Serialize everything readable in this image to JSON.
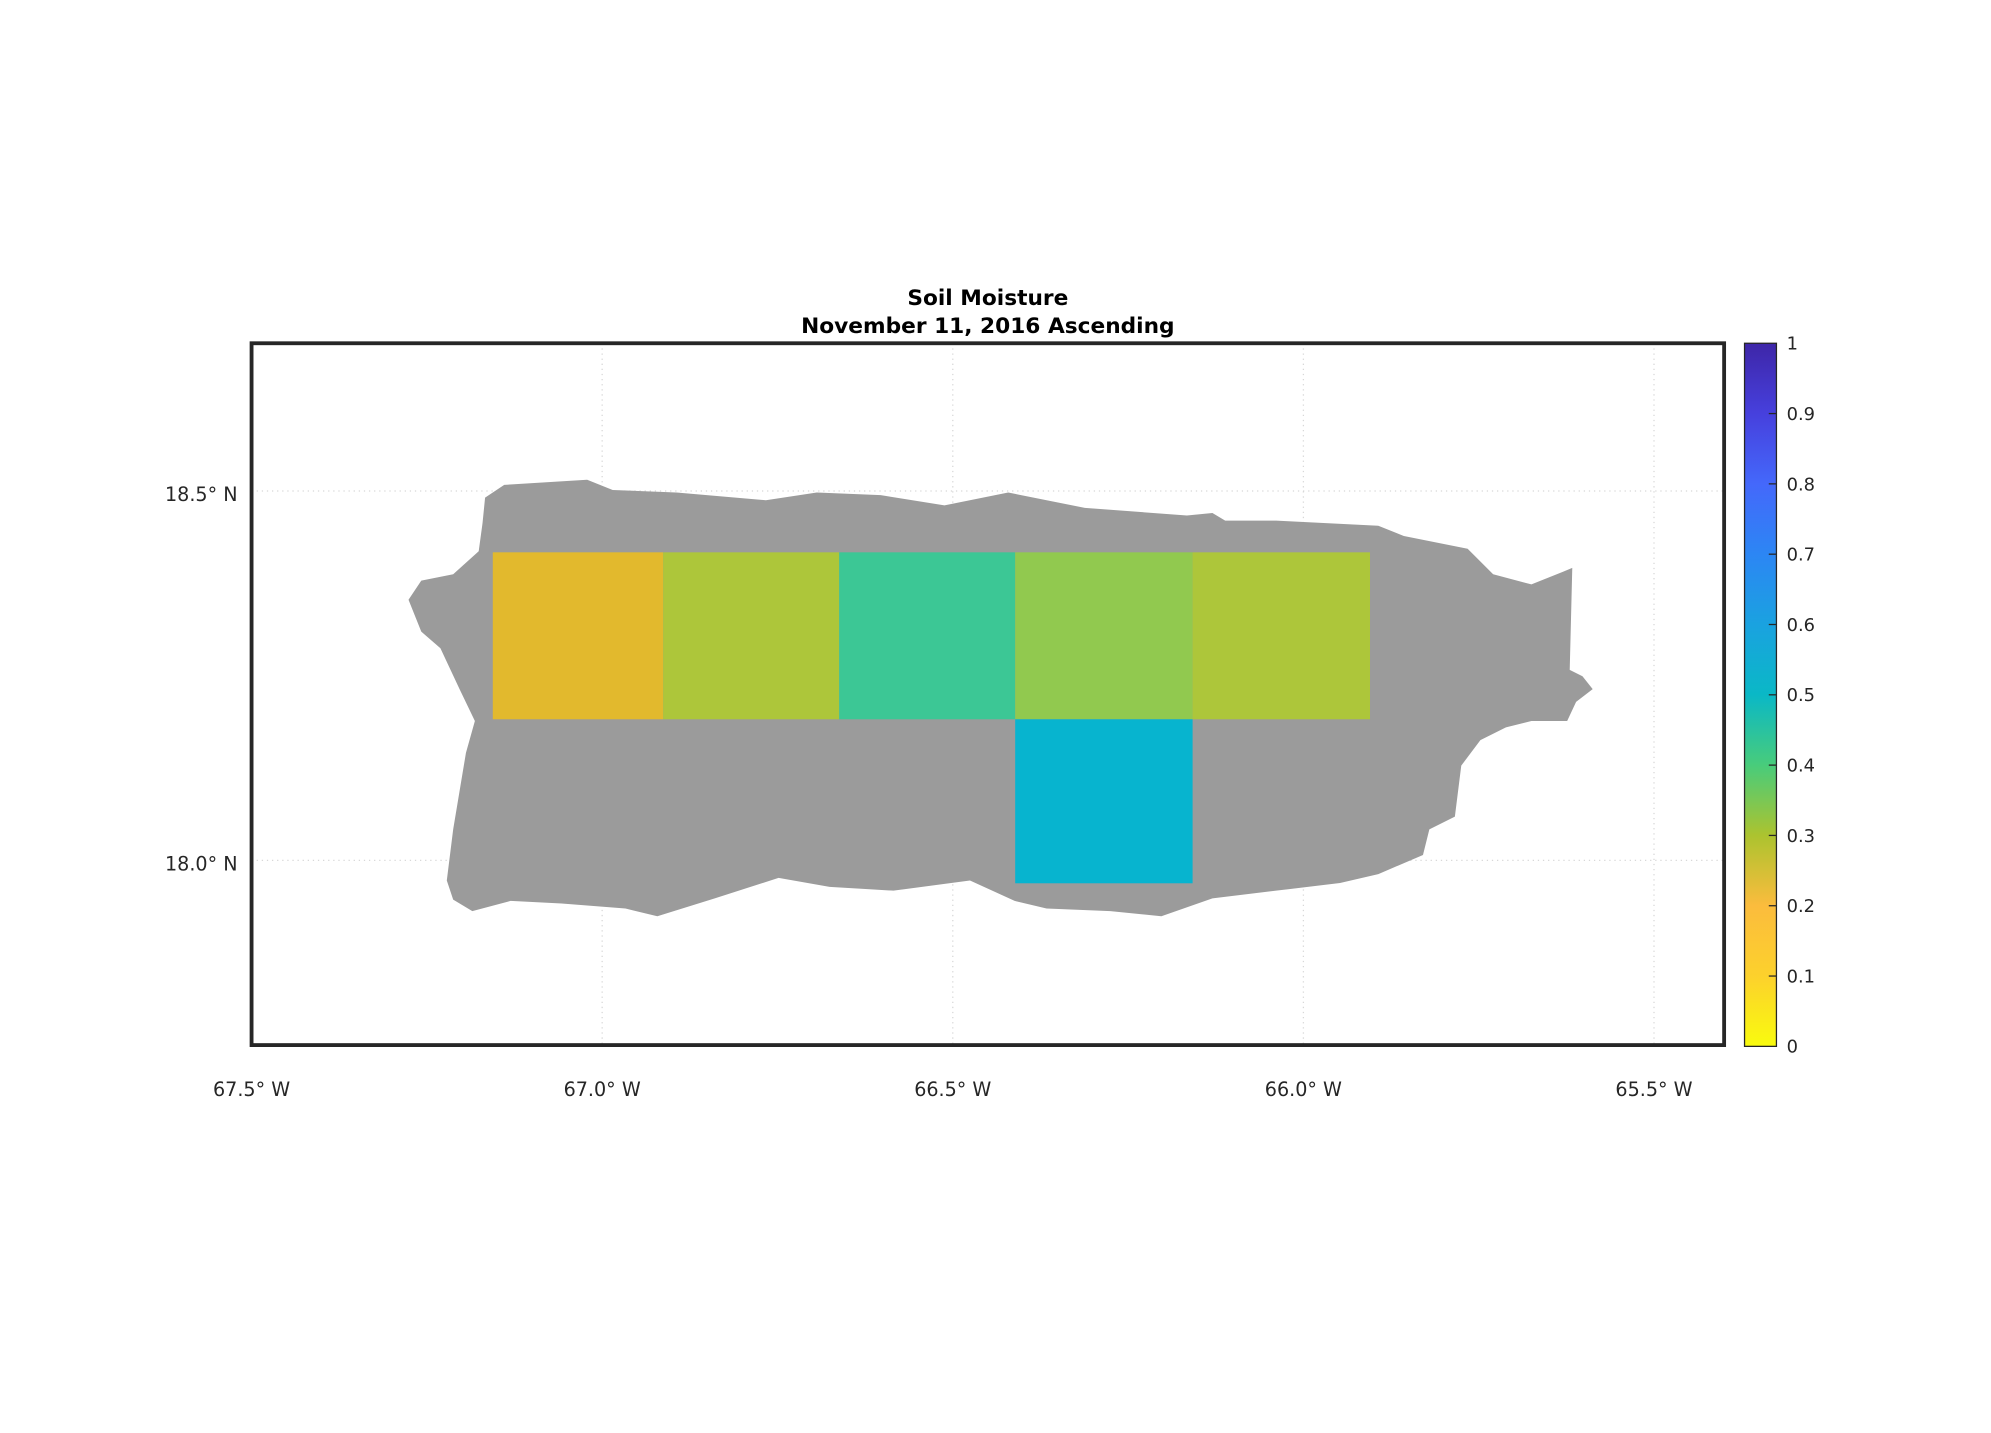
{
  "chart_data": {
    "type": "heatmap",
    "title": "Soil Moisture",
    "subtitle": "November 11, 2016 Ascending",
    "xlabel": "",
    "ylabel": "",
    "xlim": [
      -67.5,
      -65.4
    ],
    "ylim": [
      17.75,
      18.7
    ],
    "x_ticks": [
      -67.5,
      -67.0,
      -66.5,
      -66.0,
      -65.5
    ],
    "x_tick_labels": [
      "67.5° W",
      "67.0° W",
      "66.5° W",
      "66.0° W",
      "65.5° W"
    ],
    "y_ticks": [
      18.0,
      18.5
    ],
    "y_tick_labels": [
      "18.0° N",
      "18.5° N"
    ],
    "grid": true,
    "land_color": "#9b9b9b",
    "cells": [
      {
        "lon": [
          -67.156,
          -66.913
        ],
        "lat": [
          18.191,
          18.417
        ],
        "value": 0.22,
        "color": "#e2b92d"
      },
      {
        "lon": [
          -66.913,
          -66.662
        ],
        "lat": [
          18.191,
          18.417
        ],
        "value": 0.3,
        "color": "#adc63a"
      },
      {
        "lon": [
          -66.662,
          -66.411
        ],
        "lat": [
          18.191,
          18.417
        ],
        "value": 0.43,
        "color": "#3cc795"
      },
      {
        "lon": [
          -66.411,
          -66.158
        ],
        "lat": [
          18.191,
          18.417
        ],
        "value": 0.35,
        "color": "#91c94f"
      },
      {
        "lon": [
          -66.158,
          -65.905
        ],
        "lat": [
          18.191,
          18.417
        ],
        "value": 0.3,
        "color": "#adc63a"
      },
      {
        "lon": [
          -66.411,
          -66.158
        ],
        "lat": [
          17.969,
          18.191
        ],
        "value": 0.53,
        "color": "#07b4cf"
      }
    ],
    "colorbar": {
      "range": [
        0,
        1
      ],
      "ticks": [
        "0",
        "0.1",
        "0.2",
        "0.3",
        "0.4",
        "0.5",
        "0.6",
        "0.7",
        "0.8",
        "0.9",
        "1"
      ],
      "colormap": "parula",
      "stops": [
        "#f9fb0e",
        "#fcd12c",
        "#fbbc3d",
        "#acc32f",
        "#48cc7b",
        "#0ab8c6",
        "#1aa2e0",
        "#2c86f4",
        "#4468fb",
        "#4640dd",
        "#3e26a8"
      ]
    }
  }
}
